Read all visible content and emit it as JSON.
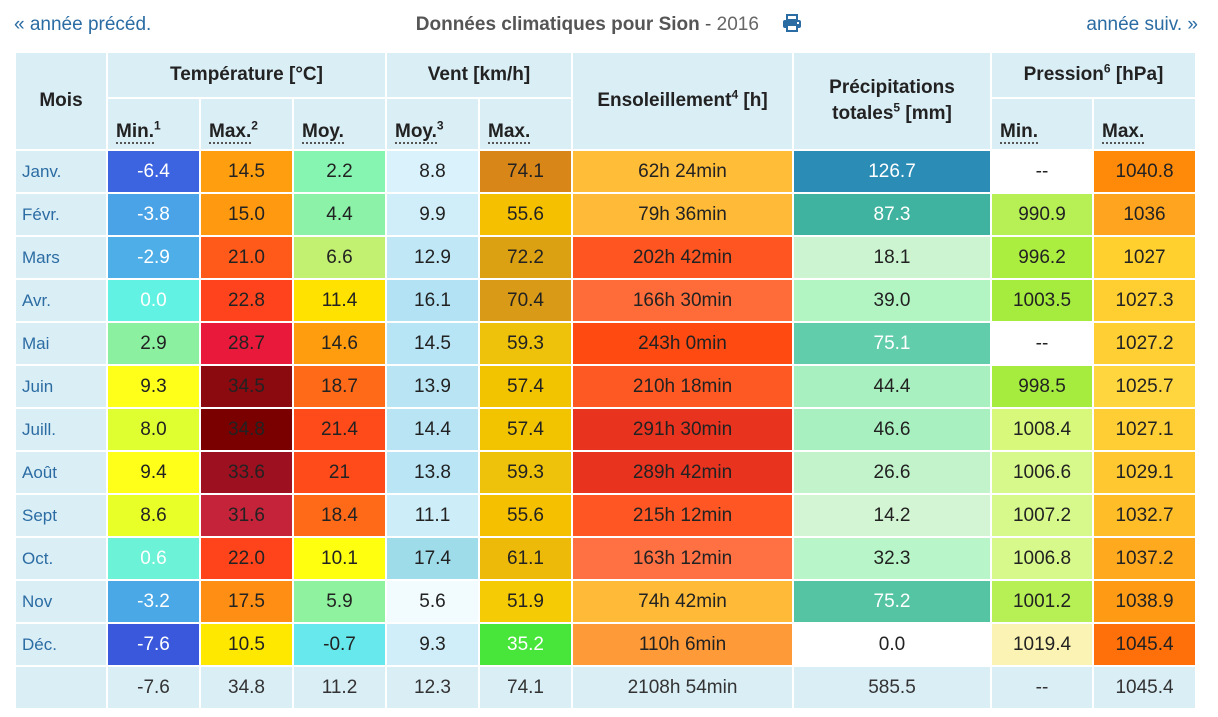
{
  "nav": {
    "prev": "« année précéd.",
    "next": "année suiv. »"
  },
  "header": {
    "title_bold": "Données climatiques pour Sion",
    "title_sep": " - ",
    "year": "2016",
    "print_icon": "printer-icon"
  },
  "columns": {
    "mois": "Mois",
    "temp": "Température [°C]",
    "vent": "Vent [km/h]",
    "sun": "Ensoleillement",
    "sun_sup": "4",
    "sun_unit": " [h]",
    "precip_line1": "Précipitations",
    "precip_line2": "totales",
    "precip_sup": "5",
    "precip_unit": " [mm]",
    "press": "Pression",
    "press_sup": "6",
    "press_unit": " [hPa]",
    "t_min": "Min.",
    "t_min_sup": "1",
    "t_max": "Max.",
    "t_max_sup": "2",
    "t_moy": "Moy.",
    "v_moy": "Moy.",
    "v_moy_sup": "3",
    "v_max": "Max.",
    "p_min": "Min.",
    "p_max": "Max."
  },
  "rows": [
    {
      "month": "Janv.",
      "tmin": "-6.4",
      "tmax": "14.5",
      "tmoy": "2.2",
      "vmoy": "8.8",
      "vmax": "74.1",
      "sun": "62h 24min",
      "precip": "126.7",
      "pmin": "--",
      "pmax": "1040.8"
    },
    {
      "month": "Févr.",
      "tmin": "-3.8",
      "tmax": "15.0",
      "tmoy": "4.4",
      "vmoy": "9.9",
      "vmax": "55.6",
      "sun": "79h 36min",
      "precip": "87.3",
      "pmin": "990.9",
      "pmax": "1036"
    },
    {
      "month": "Mars",
      "tmin": "-2.9",
      "tmax": "21.0",
      "tmoy": "6.6",
      "vmoy": "12.9",
      "vmax": "72.2",
      "sun": "202h 42min",
      "precip": "18.1",
      "pmin": "996.2",
      "pmax": "1027"
    },
    {
      "month": "Avr.",
      "tmin": "0.0",
      "tmax": "22.8",
      "tmoy": "11.4",
      "vmoy": "16.1",
      "vmax": "70.4",
      "sun": "166h 30min",
      "precip": "39.0",
      "pmin": "1003.5",
      "pmax": "1027.3"
    },
    {
      "month": "Mai",
      "tmin": "2.9",
      "tmax": "28.7",
      "tmoy": "14.6",
      "vmoy": "14.5",
      "vmax": "59.3",
      "sun": "243h 0min",
      "precip": "75.1",
      "pmin": "--",
      "pmax": "1027.2"
    },
    {
      "month": "Juin",
      "tmin": "9.3",
      "tmax": "34.5",
      "tmoy": "18.7",
      "vmoy": "13.9",
      "vmax": "57.4",
      "sun": "210h 18min",
      "precip": "44.4",
      "pmin": "998.5",
      "pmax": "1025.7"
    },
    {
      "month": "Juill.",
      "tmin": "8.0",
      "tmax": "34.8",
      "tmoy": "21.4",
      "vmoy": "14.4",
      "vmax": "57.4",
      "sun": "291h 30min",
      "precip": "46.6",
      "pmin": "1008.4",
      "pmax": "1027.1"
    },
    {
      "month": "Août",
      "tmin": "9.4",
      "tmax": "33.6",
      "tmoy": "21",
      "vmoy": "13.8",
      "vmax": "59.3",
      "sun": "289h 42min",
      "precip": "26.6",
      "pmin": "1006.6",
      "pmax": "1029.1"
    },
    {
      "month": "Sept",
      "tmin": "8.6",
      "tmax": "31.6",
      "tmoy": "18.4",
      "vmoy": "11.1",
      "vmax": "55.6",
      "sun": "215h 12min",
      "precip": "14.2",
      "pmin": "1007.2",
      "pmax": "1032.7"
    },
    {
      "month": "Oct.",
      "tmin": "0.6",
      "tmax": "22.0",
      "tmoy": "10.1",
      "vmoy": "17.4",
      "vmax": "61.1",
      "sun": "163h 12min",
      "precip": "32.3",
      "pmin": "1006.8",
      "pmax": "1037.2"
    },
    {
      "month": "Nov",
      "tmin": "-3.2",
      "tmax": "17.5",
      "tmoy": "5.9",
      "vmoy": "5.6",
      "vmax": "51.9",
      "sun": "74h 42min",
      "precip": "75.2",
      "pmin": "1001.2",
      "pmax": "1038.9"
    },
    {
      "month": "Déc.",
      "tmin": "-7.6",
      "tmax": "10.5",
      "tmoy": "-0.7",
      "vmoy": "9.3",
      "vmax": "35.2",
      "sun": "110h 6min",
      "precip": "0.0",
      "pmin": "1019.4",
      "pmax": "1045.4"
    }
  ],
  "totals": {
    "month": "",
    "tmin": "-7.6",
    "tmax": "34.8",
    "tmoy": "11.2",
    "vmoy": "12.3",
    "vmax": "74.1",
    "sun": "2108h 54min",
    "precip": "585.5",
    "pmin": "--",
    "pmax": "1045.4"
  },
  "cell_colors": [
    [
      "#3c63e0",
      "#ff9f0f",
      "#86f5b2",
      "#d9f2fb",
      "#d98619",
      "#ffbd38",
      "#2b8cb6",
      "#ffffff",
      "#ff8a0a"
    ],
    [
      "#4aa3e6",
      "#ff9a10",
      "#8bf2a8",
      "#d0eef9",
      "#f5c000",
      "#ffbb38",
      "#3fb39f",
      "#b6f055",
      "#ffa41f"
    ],
    [
      "#4eaee8",
      "#ff5a1a",
      "#c2f070",
      "#bfe7f6",
      "#dca112",
      "#ff5520",
      "#ccf4d1",
      "#acee40",
      "#ffd02e"
    ],
    [
      "#62f2e4",
      "#ff441d",
      "#ffe200",
      "#b3e2f4",
      "#d99a17",
      "#ff6c39",
      "#b2f5c3",
      "#a6ec3e",
      "#ffce31"
    ],
    [
      "#8bf0a0",
      "#e8193a",
      "#ff9d0f",
      "#b8e5f5",
      "#eec20a",
      "#ff4a12",
      "#62cdaa",
      "#ffffff",
      "#ffcf34"
    ],
    [
      "#ffff1a",
      "#8a0a10",
      "#ff6a18",
      "#b8e4f4",
      "#f2c400",
      "#ff5923",
      "#a9f0c0",
      "#a6ec3e",
      "#ffd63e"
    ],
    [
      "#dfff30",
      "#7a0000",
      "#ff4a1a",
      "#b8e4f4",
      "#f2c400",
      "#e8331f",
      "#a9f0c0",
      "#d7f87a",
      "#ffce34"
    ],
    [
      "#ffff1a",
      "#9c1020",
      "#ff4a1a",
      "#b9e5f5",
      "#eec20a",
      "#e8331f",
      "#c2f3cb",
      "#d7f88a",
      "#ffc830"
    ],
    [
      "#e8ff28",
      "#c4233a",
      "#ff6a18",
      "#cdedf8",
      "#f5c000",
      "#ff5623",
      "#d4f5d4",
      "#d7f88a",
      "#ffbe28"
    ],
    [
      "#6cf2d6",
      "#ff431b",
      "#ffff10",
      "#9fdcea",
      "#eeba0a",
      "#ff7043",
      "#b8f5c8",
      "#d7f88a",
      "#ffa91f"
    ],
    [
      "#4aa8e6",
      "#ff8f14",
      "#8ff29e",
      "#f2fbfe",
      "#f5cb05",
      "#ffbb38",
      "#54c4a2",
      "#b6f055",
      "#ff9a15"
    ],
    [
      "#3a58dc",
      "#ffe800",
      "#66e8ec",
      "#d0eef9",
      "#48e63a",
      "#ff9a38",
      "#ffffff",
      "#fbf3b3",
      "#ff700a"
    ]
  ],
  "white_text_cells": [
    [
      0,
      0
    ],
    [
      0,
      6
    ],
    [
      1,
      0
    ],
    [
      1,
      6
    ],
    [
      2,
      0
    ],
    [
      3,
      0
    ],
    [
      4,
      6
    ],
    [
      9,
      0
    ],
    [
      10,
      0
    ],
    [
      10,
      6
    ],
    [
      11,
      0
    ],
    [
      11,
      4
    ]
  ],
  "colors": {
    "header_bg": "#daeef6",
    "link": "#2b6ca3"
  }
}
